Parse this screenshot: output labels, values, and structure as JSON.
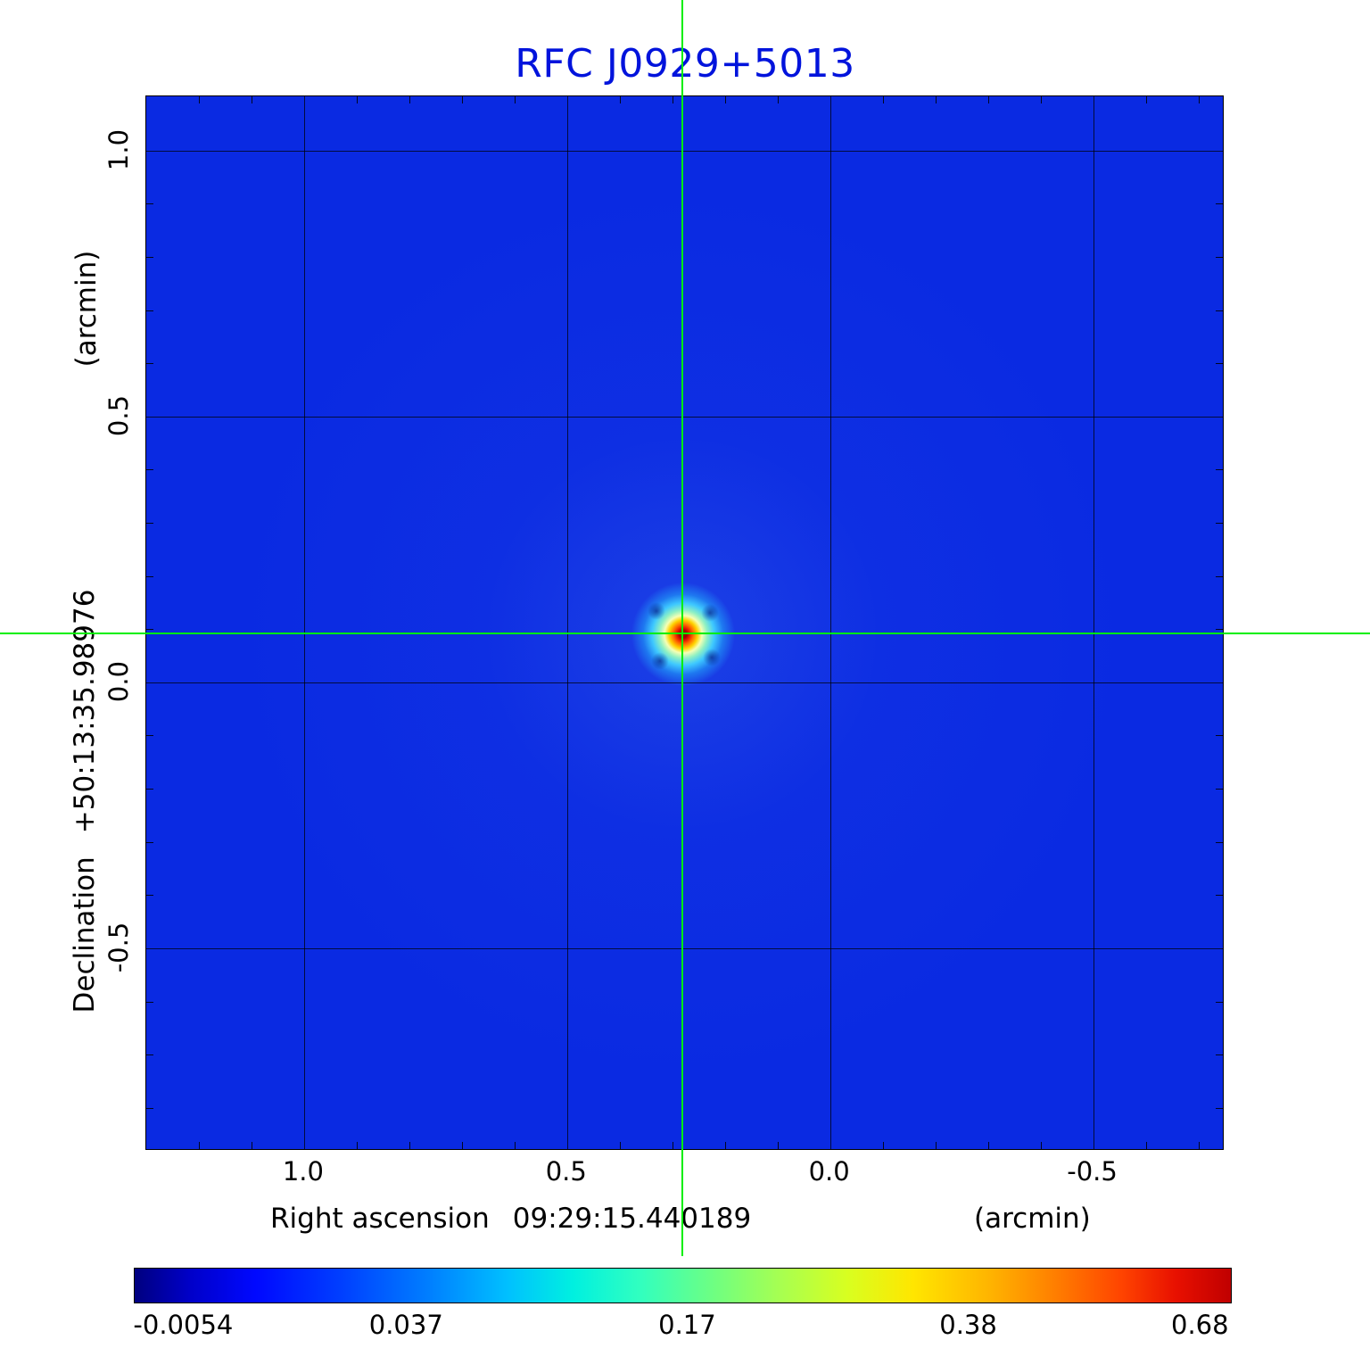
{
  "title": "RFC J0929+5013",
  "colors": {
    "title": "#0013dc",
    "field_blue": "#0a2ae2",
    "crosshair_green": "#00ef00",
    "grid": "#000000"
  },
  "chart_data": {
    "type": "heatmap",
    "title": "RFC J0929+5013",
    "colormap": "jet",
    "grid": true,
    "x_axis": {
      "label": "Right ascension",
      "center_value": "09:29:15.440189",
      "unit": "(arcmin)",
      "ticks": [
        1.0,
        0.5,
        0.0,
        -0.5
      ],
      "range": [
        1.3,
        -0.75
      ]
    },
    "y_axis": {
      "label": "Declination",
      "center_value": "+50:13:35.98976",
      "unit": "(arcmin)",
      "ticks": [
        1.0,
        0.5,
        0.0,
        -0.5
      ],
      "range": [
        1.102,
        -0.881
      ]
    },
    "source": {
      "name": "RFC J0929+5013",
      "x_arcmin": 0.28,
      "y_arcmin": 0.09,
      "peak_value": 0.68
    },
    "colorbar": {
      "tick_labels": [
        "-0.0054",
        "0.037",
        "0.17",
        "0.38",
        "0.68"
      ],
      "tick_positions": [
        0.045,
        0.248,
        0.504,
        0.76,
        0.971
      ],
      "min": -0.0054,
      "max": 0.68
    }
  }
}
